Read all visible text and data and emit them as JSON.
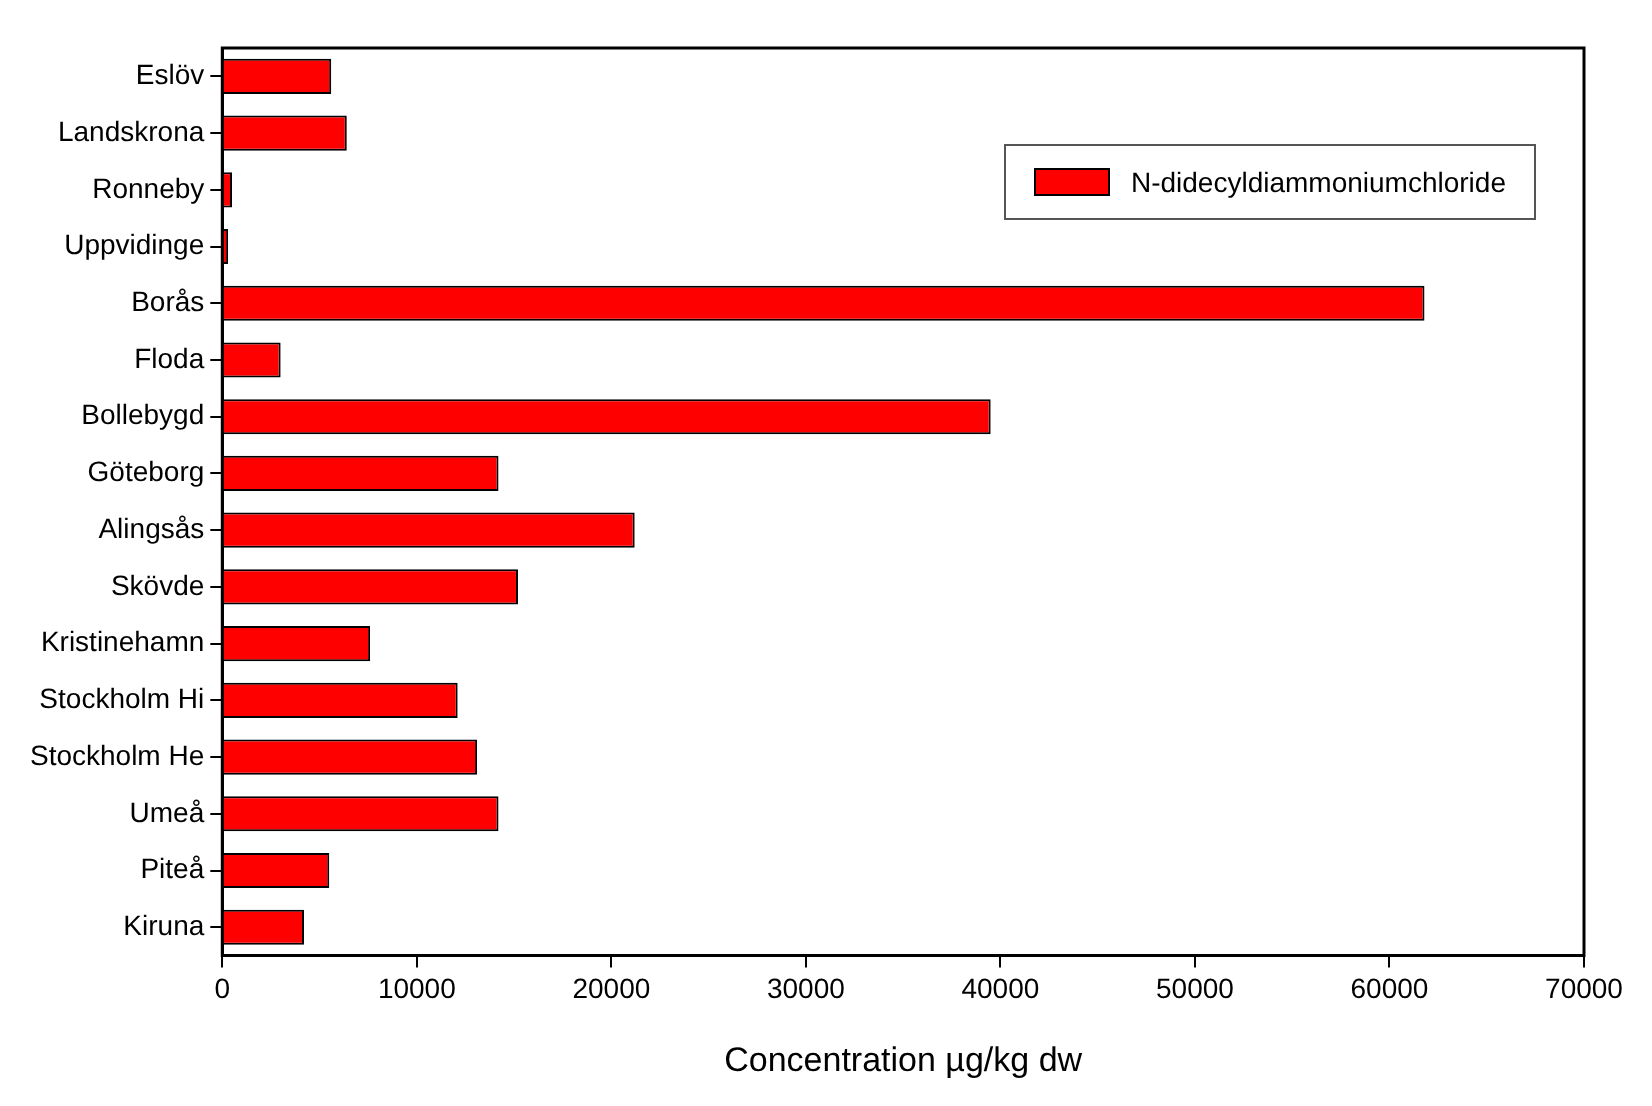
{
  "chart_data": {
    "type": "bar",
    "orientation": "horizontal",
    "xlabel": "Concentration µg/kg dw",
    "categories": [
      "Eslöv",
      "Landskrona",
      "Ronneby",
      "Uppvidinge",
      "Borås",
      "Floda",
      "Bollebygd",
      "Göteborg",
      "Alingsås",
      "Skövde",
      "Kristinehamn",
      "Stockholm Hi",
      "Stockholm He",
      "Umeå",
      "Piteå",
      "Kiruna"
    ],
    "series": [
      {
        "name": "N-didecyldiammoniumchloride",
        "color": "#ff0000",
        "values": [
          5600,
          6400,
          500,
          300,
          61800,
          3000,
          39500,
          14200,
          21200,
          15200,
          7600,
          12100,
          13100,
          14200,
          5500,
          4200
        ]
      }
    ],
    "xlim": [
      0,
      70000
    ],
    "xticks": [
      0,
      10000,
      20000,
      30000,
      40000,
      50000,
      60000,
      70000
    ],
    "grid": false,
    "legend": "top right"
  }
}
